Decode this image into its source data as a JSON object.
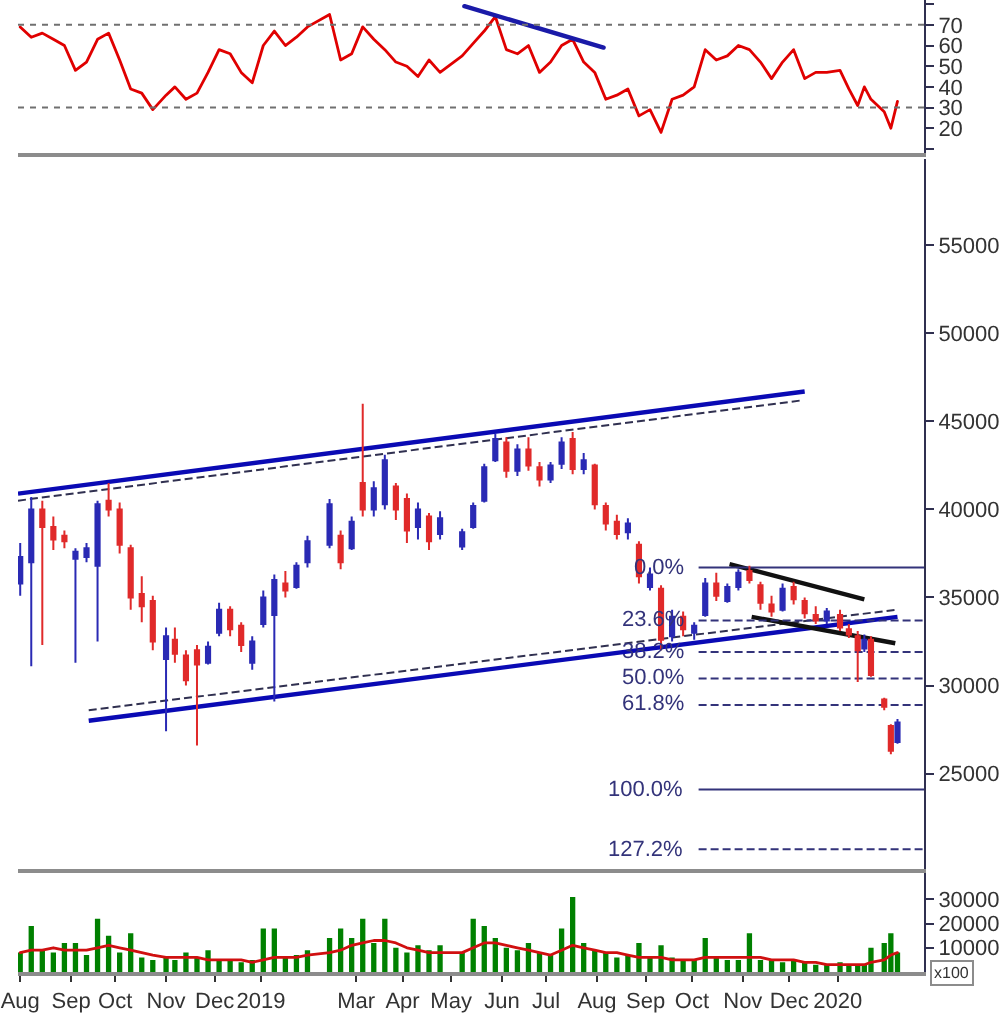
{
  "chart_data": [
    {
      "type": "line",
      "x": [
        "2018-08-01",
        "2018-08-08",
        "2018-08-15",
        "2018-08-22",
        "2018-08-29",
        "2018-09-05",
        "2018-09-12",
        "2018-09-19",
        "2018-09-26",
        "2018-10-03",
        "2018-10-10",
        "2018-10-17",
        "2018-10-24",
        "2018-11-01",
        "2018-11-07",
        "2018-11-14",
        "2018-11-21",
        "2018-11-28",
        "2018-12-05",
        "2018-12-12",
        "2018-12-19",
        "2018-12-26",
        "2019-01-02",
        "2019-01-09",
        "2019-01-16",
        "2019-01-23",
        "2019-01-30",
        "2019-02-13",
        "2019-02-20",
        "2019-02-27",
        "2019-03-06",
        "2019-03-13",
        "2019-03-20",
        "2019-03-27",
        "2019-04-03",
        "2019-04-10",
        "2019-04-17",
        "2019-04-24",
        "2019-05-08",
        "2019-05-15",
        "2019-05-22",
        "2019-05-29",
        "2019-06-05",
        "2019-06-12",
        "2019-06-19",
        "2019-06-26",
        "2019-07-03",
        "2019-07-10",
        "2019-07-17",
        "2019-07-24",
        "2019-07-31",
        "2019-08-07",
        "2019-08-14",
        "2019-08-21",
        "2019-08-28",
        "2019-09-04",
        "2019-09-11",
        "2019-09-18",
        "2019-09-25",
        "2019-10-02",
        "2019-10-09",
        "2019-10-16",
        "2019-10-23",
        "2019-10-30",
        "2019-11-06",
        "2019-11-13",
        "2019-11-20",
        "2019-11-27",
        "2019-12-04",
        "2019-12-11",
        "2019-12-18",
        "2019-12-25",
        "2020-01-02",
        "2020-01-08",
        "2020-01-14",
        "2020-01-17",
        "2020-01-22",
        "2020-01-30",
        "2020-02-04",
        "2020-02-07"
      ],
      "series": [
        {
          "color": "#e00000",
          "values": [
            69,
            64,
            66,
            63,
            60,
            48,
            52,
            63,
            66,
            53,
            39,
            37,
            29,
            36,
            40,
            34,
            37,
            47,
            58,
            56,
            47,
            42,
            60,
            67,
            60,
            64,
            69,
            75,
            53,
            56,
            69,
            63,
            58,
            52,
            50,
            45,
            53,
            47,
            55,
            61,
            67,
            74,
            58,
            56,
            60,
            47,
            52,
            60,
            63,
            52,
            47,
            34,
            36,
            39,
            26,
            29,
            18,
            34,
            36,
            40,
            58,
            53,
            55,
            60,
            58,
            52,
            44,
            52,
            58,
            44,
            47,
            47,
            48,
            39,
            31,
            40,
            34,
            28,
            20,
            33
          ]
        },
        {
          "x": [
            "2019-05-09",
            "2019-08-06"
          ],
          "values": [
            79,
            59
          ],
          "color": "#1a1aa8"
        }
      ],
      "ylim": [
        8,
        82
      ],
      "yticks": [
        {
          "value": 10,
          "label": null
        },
        20,
        30,
        40,
        50,
        60,
        70,
        {
          "value": 80,
          "label": null
        }
      ],
      "xlim": [
        "2018-07-31",
        "2020-02-25"
      ],
      "tick_labels": "y",
      "ref_lines": [
        {
          "axis": "y",
          "value": 70,
          "color": "#707070",
          "line_style": "dotted"
        },
        {
          "axis": "y",
          "value": 30,
          "color": "#707070",
          "line_style": "dotted"
        }
      ]
    },
    {
      "type": "candlestick",
      "x": [
        "2018-08-01",
        "2018-08-08",
        "2018-08-15",
        "2018-08-22",
        "2018-08-29",
        "2018-09-05",
        "2018-09-12",
        "2018-09-19",
        "2018-09-26",
        "2018-10-03",
        "2018-10-10",
        "2018-10-17",
        "2018-10-24",
        "2018-11-01",
        "2018-11-07",
        "2018-11-14",
        "2018-11-21",
        "2018-11-28",
        "2018-12-05",
        "2018-12-12",
        "2018-12-19",
        "2018-12-26",
        "2019-01-02",
        "2019-01-09",
        "2019-01-16",
        "2019-01-23",
        "2019-01-30",
        "2019-02-13",
        "2019-02-20",
        "2019-02-27",
        "2019-03-06",
        "2019-03-13",
        "2019-03-20",
        "2019-03-27",
        "2019-04-03",
        "2019-04-10",
        "2019-04-17",
        "2019-04-24",
        "2019-05-08",
        "2019-05-15",
        "2019-05-22",
        "2019-05-29",
        "2019-06-05",
        "2019-06-12",
        "2019-06-19",
        "2019-06-26",
        "2019-07-03",
        "2019-07-10",
        "2019-07-17",
        "2019-07-24",
        "2019-07-31",
        "2019-08-07",
        "2019-08-14",
        "2019-08-21",
        "2019-08-28",
        "2019-09-04",
        "2019-09-11",
        "2019-09-18",
        "2019-09-25",
        "2019-10-02",
        "2019-10-09",
        "2019-10-16",
        "2019-10-23",
        "2019-10-30",
        "2019-11-06",
        "2019-11-13",
        "2019-11-20",
        "2019-11-27",
        "2019-12-04",
        "2019-12-11",
        "2019-12-18",
        "2019-12-25",
        "2020-01-02",
        "2020-01-08",
        "2020-01-14",
        "2020-01-17",
        "2020-01-22",
        "2020-01-30",
        "2020-02-04",
        "2020-02-07"
      ],
      "ohlc": [
        [
          35800,
          38100,
          35100,
          37300
        ],
        [
          37000,
          40700,
          31100,
          40000
        ],
        [
          40000,
          40500,
          32300,
          39000
        ],
        [
          39000,
          39600,
          37700,
          38300
        ],
        [
          38500,
          38800,
          37800,
          38200
        ],
        [
          37200,
          37800,
          31300,
          37600
        ],
        [
          37300,
          38100,
          37000,
          37800
        ],
        [
          36800,
          40500,
          32500,
          40300
        ],
        [
          40500,
          41500,
          39600,
          40000
        ],
        [
          40000,
          40400,
          37500,
          38000
        ],
        [
          37800,
          38000,
          34300,
          35000
        ],
        [
          35200,
          36200,
          33600,
          34500
        ],
        [
          34800,
          35100,
          32000,
          32500
        ],
        [
          31500,
          33300,
          27400,
          32800
        ],
        [
          32600,
          33300,
          31300,
          31800
        ],
        [
          31700,
          32000,
          30000,
          30300
        ],
        [
          32000,
          32300,
          26600,
          31200
        ],
        [
          31300,
          32500,
          31200,
          32200
        ],
        [
          33000,
          34700,
          32800,
          34300
        ],
        [
          34300,
          34500,
          32800,
          33200
        ],
        [
          33400,
          33600,
          31900,
          32300
        ],
        [
          31300,
          32800,
          30900,
          32500
        ],
        [
          33500,
          35400,
          33300,
          35000
        ],
        [
          34000,
          36300,
          29100,
          36000
        ],
        [
          35800,
          36500,
          35000,
          35400
        ],
        [
          35600,
          37000,
          35500,
          36800
        ],
        [
          37000,
          38500,
          36700,
          38200
        ],
        [
          38000,
          40600,
          37800,
          40300
        ],
        [
          38500,
          38800,
          36600,
          37000
        ],
        [
          37800,
          39600,
          37700,
          39300
        ],
        [
          41500,
          46000,
          39600,
          40000
        ],
        [
          40000,
          41600,
          39600,
          41200
        ],
        [
          40300,
          43100,
          40000,
          42800
        ],
        [
          41300,
          41500,
          39400,
          40000
        ],
        [
          40600,
          40900,
          38100,
          38800
        ],
        [
          39000,
          40400,
          38300,
          40000
        ],
        [
          39600,
          39800,
          37700,
          38200
        ],
        [
          38600,
          39900,
          38300,
          39500
        ],
        [
          37900,
          38900,
          37700,
          38700
        ],
        [
          39000,
          40400,
          38900,
          40200
        ],
        [
          40500,
          42600,
          40400,
          42400
        ],
        [
          42800,
          44300,
          42700,
          44000
        ],
        [
          43800,
          44100,
          41800,
          42200
        ],
        [
          42200,
          43700,
          41900,
          43400
        ],
        [
          43400,
          44100,
          42200,
          42500
        ],
        [
          42400,
          42700,
          41300,
          41700
        ],
        [
          41700,
          42700,
          41500,
          42500
        ],
        [
          42600,
          44100,
          42300,
          43800
        ],
        [
          44000,
          44400,
          42000,
          42300
        ],
        [
          42300,
          43200,
          42000,
          42800
        ],
        [
          42500,
          42600,
          40000,
          40300
        ],
        [
          40200,
          40400,
          38800,
          39200
        ],
        [
          39300,
          39700,
          38300,
          38600
        ],
        [
          38700,
          39500,
          38300,
          39200
        ],
        [
          38000,
          38200,
          35800,
          36200
        ],
        [
          35600,
          36700,
          35400,
          36300
        ],
        [
          35500,
          35700,
          32000,
          32600
        ],
        [
          32800,
          34300,
          32500,
          33900
        ],
        [
          33900,
          34200,
          32800,
          33200
        ],
        [
          33000,
          33600,
          32600,
          33400
        ],
        [
          34000,
          36100,
          33900,
          35800
        ],
        [
          35800,
          36400,
          34800,
          35100
        ],
        [
          34800,
          35800,
          34700,
          35600
        ],
        [
          35600,
          36600,
          35400,
          36400
        ],
        [
          36500,
          36800,
          35800,
          36000
        ],
        [
          35700,
          35900,
          34300,
          34700
        ],
        [
          34600,
          35100,
          33900,
          34200
        ],
        [
          34300,
          35800,
          34200,
          35500
        ],
        [
          35600,
          35900,
          34600,
          34900
        ],
        [
          34800,
          35000,
          33800,
          34100
        ],
        [
          34000,
          34500,
          33500,
          33700
        ],
        [
          33700,
          34400,
          33500,
          34200
        ],
        [
          34000,
          34300,
          33100,
          33300
        ],
        [
          33200,
          33500,
          32700,
          32900
        ],
        [
          32800,
          33100,
          30200,
          32000
        ],
        [
          32100,
          32900,
          31900,
          32600
        ],
        [
          32600,
          32800,
          30500,
          30600
        ],
        [
          29200,
          29300,
          28600,
          28800
        ],
        [
          27700,
          27800,
          26100,
          26300
        ],
        [
          26800,
          28100,
          26700,
          27900
        ]
      ],
      "series": [
        {
          "type": "line",
          "x": [
            "2018-07-31",
            "2019-12-11"
          ],
          "values": [
            40900,
            46700
          ],
          "color": "#0a0ab4",
          "line_style": "solid"
        },
        {
          "type": "line",
          "x": [
            "2018-07-31",
            "2019-12-10"
          ],
          "values": [
            40500,
            46200
          ],
          "color": "#303050",
          "line_style": "dashed"
        },
        {
          "type": "line",
          "x": [
            "2018-09-13",
            "2020-02-07"
          ],
          "values": [
            28000,
            33900
          ],
          "color": "#0a0ab4",
          "line_style": "solid"
        },
        {
          "type": "line",
          "x": [
            "2018-09-13",
            "2020-02-06"
          ],
          "values": [
            28600,
            34300
          ],
          "color": "#303050",
          "line_style": "dashed"
        },
        {
          "type": "line",
          "x": [
            "2019-10-24",
            "2020-01-17"
          ],
          "values": [
            36900,
            34900
          ],
          "color": "#111111",
          "line_style": "solid"
        },
        {
          "type": "line",
          "x": [
            "2019-11-07",
            "2020-02-06"
          ],
          "values": [
            33900,
            32400
          ],
          "color": "#111111",
          "line_style": "solid"
        },
        {
          "type": "line",
          "name": "0.0%",
          "x": [
            "2019-10-04",
            "2020-02-25"
          ],
          "values": [
            36700,
            36700
          ],
          "color": "#33337a",
          "line_style": "solid"
        },
        {
          "type": "line",
          "name": "23.6%",
          "x": [
            "2019-10-04",
            "2020-02-25"
          ],
          "values": [
            33700,
            33700
          ],
          "color": "#33337a",
          "line_style": "dashed"
        },
        {
          "type": "line",
          "name": "38.2%",
          "x": [
            "2019-10-04",
            "2020-02-25"
          ],
          "values": [
            31900,
            31900
          ],
          "color": "#33337a",
          "line_style": "dashed"
        },
        {
          "type": "line",
          "name": "50.0%",
          "x": [
            "2019-10-04",
            "2020-02-25"
          ],
          "values": [
            30400,
            30400
          ],
          "color": "#33337a",
          "line_style": "dashed"
        },
        {
          "type": "line",
          "name": "61.8%",
          "x": [
            "2019-10-04",
            "2020-02-25"
          ],
          "values": [
            28900,
            28900
          ],
          "color": "#33337a",
          "line_style": "dashed"
        },
        {
          "type": "line",
          "name": "100.0%",
          "x": [
            "2019-10-04",
            "2020-02-25"
          ],
          "values": [
            24100,
            24100
          ],
          "color": "#33337a",
          "line_style": "solid"
        },
        {
          "type": "line",
          "name": "127.2%",
          "x": [
            "2019-10-04",
            "2020-02-25"
          ],
          "values": [
            20700,
            20700
          ],
          "color": "#33337a",
          "line_style": "dashed"
        }
      ],
      "ylim": [
        19600,
        59900
      ],
      "yticks": [
        25000,
        30000,
        35000,
        40000,
        45000,
        50000,
        55000
      ],
      "xlim": [
        "2018-07-31",
        "2020-02-25"
      ],
      "tick_labels": "y"
    },
    {
      "type": "bar",
      "x": [
        "2018-08-01",
        "2018-08-08",
        "2018-08-15",
        "2018-08-22",
        "2018-08-29",
        "2018-09-05",
        "2018-09-12",
        "2018-09-19",
        "2018-09-26",
        "2018-10-03",
        "2018-10-10",
        "2018-10-17",
        "2018-10-24",
        "2018-11-01",
        "2018-11-07",
        "2018-11-14",
        "2018-11-21",
        "2018-11-28",
        "2018-12-05",
        "2018-12-12",
        "2018-12-19",
        "2018-12-26",
        "2019-01-02",
        "2019-01-09",
        "2019-01-16",
        "2019-01-23",
        "2019-01-30",
        "2019-02-13",
        "2019-02-20",
        "2019-02-27",
        "2019-03-06",
        "2019-03-13",
        "2019-03-20",
        "2019-03-27",
        "2019-04-03",
        "2019-04-10",
        "2019-04-17",
        "2019-04-24",
        "2019-05-08",
        "2019-05-15",
        "2019-05-22",
        "2019-05-29",
        "2019-06-05",
        "2019-06-12",
        "2019-06-19",
        "2019-06-26",
        "2019-07-03",
        "2019-07-10",
        "2019-07-17",
        "2019-07-24",
        "2019-07-31",
        "2019-08-07",
        "2019-08-14",
        "2019-08-21",
        "2019-08-28",
        "2019-09-04",
        "2019-09-11",
        "2019-09-18",
        "2019-09-25",
        "2019-10-02",
        "2019-10-09",
        "2019-10-16",
        "2019-10-23",
        "2019-10-30",
        "2019-11-06",
        "2019-11-13",
        "2019-11-20",
        "2019-11-27",
        "2019-12-04",
        "2019-12-11",
        "2019-12-18",
        "2019-12-25",
        "2020-01-02",
        "2020-01-08",
        "2020-01-14",
        "2020-01-17",
        "2020-01-22",
        "2020-01-30",
        "2020-02-04",
        "2020-02-07"
      ],
      "series": [
        {
          "color": "#008000",
          "values": [
            8000,
            19000,
            9000,
            8000,
            12000,
            12000,
            7000,
            22000,
            15000,
            8000,
            16000,
            6000,
            5000,
            6000,
            5000,
            8000,
            6000,
            9000,
            5000,
            5000,
            4000,
            5000,
            18000,
            18000,
            6000,
            7000,
            9000,
            14000,
            18000,
            14000,
            22000,
            12000,
            22000,
            10000,
            8000,
            11000,
            9000,
            11000,
            8000,
            22000,
            19000,
            14000,
            10000,
            9000,
            12000,
            8000,
            7000,
            18000,
            31000,
            12000,
            9000,
            8000,
            6000,
            7000,
            12000,
            6000,
            11000,
            6000,
            5000,
            5000,
            14000,
            6000,
            5000,
            5000,
            16000,
            5000,
            5000,
            4000,
            5000,
            4000,
            3000,
            3000,
            4000,
            3000,
            3000,
            3000,
            10000,
            12000,
            16000,
            8000
          ]
        },
        {
          "type": "line",
          "color": "#d01010",
          "values": [
            8000,
            9000,
            9000,
            10000,
            9000,
            9000,
            9000,
            10000,
            11000,
            10000,
            9000,
            8000,
            7000,
            6000,
            6000,
            6000,
            6000,
            5000,
            5000,
            5000,
            5000,
            4000,
            5000,
            6000,
            6000,
            6000,
            7000,
            8000,
            9000,
            11000,
            12000,
            13000,
            13000,
            12000,
            10000,
            9000,
            8000,
            8000,
            8000,
            10000,
            12000,
            12000,
            11000,
            10000,
            9000,
            8000,
            7000,
            9000,
            11000,
            10000,
            9000,
            8000,
            8000,
            7000,
            6000,
            6000,
            6000,
            5000,
            5000,
            5000,
            6000,
            6000,
            6000,
            6000,
            6000,
            6000,
            5000,
            5000,
            5000,
            4000,
            4000,
            3000,
            3000,
            3000,
            3000,
            3000,
            4000,
            5000,
            7000,
            8000
          ]
        }
      ],
      "ylim": [
        0,
        41000
      ],
      "yticks": [
        10000,
        20000,
        30000
      ],
      "xlim": [
        "2018-07-31",
        "2020-02-25"
      ],
      "xticks": [
        {
          "value": "2018-08-01",
          "label": "Aug"
        },
        {
          "value": "2018-09-03",
          "label": "Sep"
        },
        {
          "value": "2018-10-01",
          "label": "Oct"
        },
        {
          "value": "2018-11-01",
          "label": "Nov"
        },
        {
          "value": "2018-12-03",
          "label": "Dec"
        },
        {
          "value": "2019-01-01",
          "label": "2019"
        },
        {
          "value": "2019-03-01",
          "label": "Mar"
        },
        {
          "value": "2019-04-01",
          "label": "Apr"
        },
        {
          "value": "2019-05-01",
          "label": "May"
        },
        {
          "value": "2019-06-03",
          "label": "Jun"
        },
        {
          "value": "2019-07-01",
          "label": "Jul"
        },
        {
          "value": "2019-08-01",
          "label": "Aug"
        },
        {
          "value": "2019-09-02",
          "label": "Sep"
        },
        {
          "value": "2019-10-01",
          "label": "Oct"
        },
        {
          "value": "2019-11-01",
          "label": "Nov"
        },
        {
          "value": "2019-12-02",
          "label": "Dec"
        },
        {
          "value": "2020-01-01",
          "label": "2020"
        }
      ],
      "annotations": [
        "x100"
      ]
    }
  ]
}
